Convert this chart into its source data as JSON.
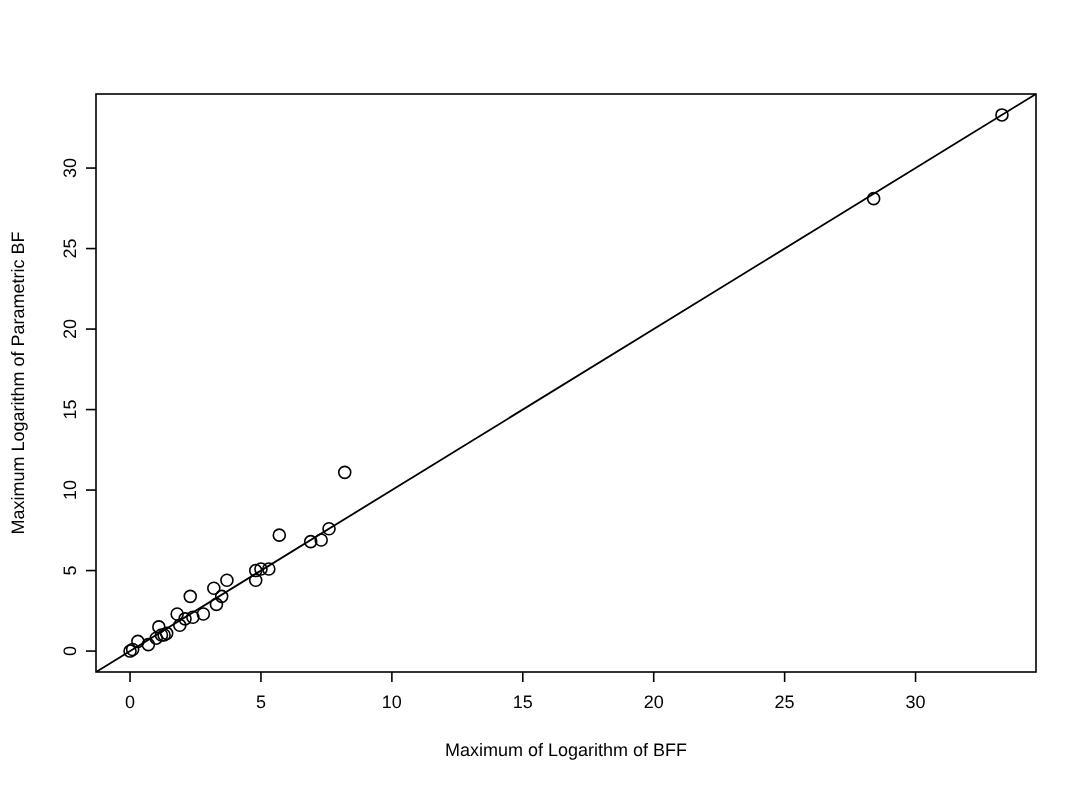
{
  "chart_data": {
    "type": "scatter",
    "xlabel": "Maximum of Logarithm of BFF",
    "ylabel": "Maximum Logarithm of Parametric BF",
    "xlim": [
      -1.3,
      34.6
    ],
    "ylim": [
      -1.3,
      34.6
    ],
    "xticks": [
      0,
      5,
      10,
      15,
      20,
      25,
      30
    ],
    "yticks": [
      0,
      5,
      10,
      15,
      20,
      25,
      30
    ],
    "marker": "circle",
    "grid": false,
    "series": [
      {
        "color": "#000000",
        "x": [
          0,
          0.1,
          0.3,
          0.7,
          1.0,
          1.1,
          1.2,
          1.3,
          1.4,
          1.8,
          1.9,
          2.1,
          2.3,
          2.4,
          2.8,
          3.2,
          3.3,
          3.5,
          3.7,
          4.8,
          4.8,
          5.0,
          5.3,
          5.7,
          6.9,
          7.3,
          7.6,
          8.2,
          28.4,
          33.3
        ],
        "values": [
          0,
          0.1,
          0.6,
          0.4,
          0.8,
          1.5,
          1.0,
          1.0,
          1.1,
          2.3,
          1.6,
          2.0,
          3.4,
          2.1,
          2.3,
          3.9,
          2.9,
          3.4,
          4.4,
          4.4,
          5.0,
          5.1,
          5.1,
          7.2,
          6.8,
          6.9,
          7.6,
          11.1,
          28.1,
          33.3
        ]
      },
      {
        "type": "line",
        "color": "#000000",
        "marker": "none",
        "line_style": "solid",
        "x": [
          -1.3,
          34.6
        ],
        "values": [
          -1.3,
          34.6
        ]
      }
    ]
  }
}
